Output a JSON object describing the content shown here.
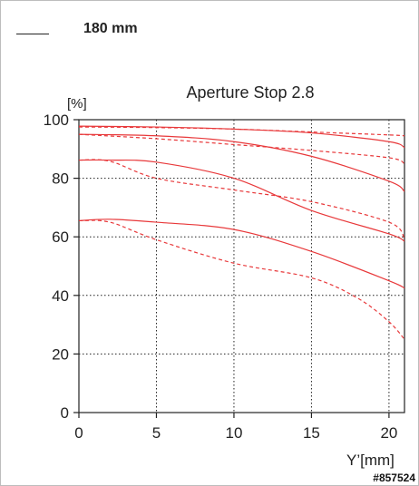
{
  "legend": {
    "label": "180 mm"
  },
  "watermark": "#857524",
  "chart_data": {
    "type": "line",
    "title": "Aperture Stop 2.8",
    "ylabel": "[%]",
    "xlabel": "Y’[mm]",
    "xlim": [
      0,
      21
    ],
    "ylim": [
      0,
      100
    ],
    "xticks": [
      0,
      5,
      10,
      15,
      20
    ],
    "yticks": [
      0,
      20,
      40,
      60,
      80,
      100
    ],
    "grid": true,
    "colors": {
      "series": "#e8383a",
      "axis": "#222222",
      "grid": "#222222"
    },
    "series": [
      {
        "style": "solid",
        "x": [
          0,
          5,
          10,
          15,
          20,
          21
        ],
        "y": [
          97.8,
          97.5,
          96.8,
          95.5,
          92.5,
          90.5
        ]
      },
      {
        "style": "dashed",
        "x": [
          0,
          5,
          10,
          15,
          20,
          21
        ],
        "y": [
          97.5,
          97.3,
          96.8,
          95.8,
          94.8,
          94.5
        ]
      },
      {
        "style": "solid",
        "x": [
          0,
          5,
          10,
          15,
          20,
          21
        ],
        "y": [
          95.0,
          94.5,
          92.5,
          87.5,
          79.0,
          75.5
        ]
      },
      {
        "style": "dashed",
        "x": [
          0,
          5,
          10,
          15,
          20,
          21
        ],
        "y": [
          95.0,
          93.5,
          91.5,
          89.5,
          87.0,
          85.0
        ]
      },
      {
        "style": "solid",
        "x": [
          0,
          2,
          5,
          10,
          15,
          20,
          21
        ],
        "y": [
          86.2,
          86.2,
          85.5,
          80.0,
          69.0,
          61.0,
          58.5
        ]
      },
      {
        "style": "dashed",
        "x": [
          0,
          2,
          5,
          10,
          15,
          20,
          21
        ],
        "y": [
          86.2,
          85.8,
          80.0,
          76.0,
          72.0,
          65.0,
          59.5
        ]
      },
      {
        "style": "solid",
        "x": [
          0,
          2,
          5,
          10,
          15,
          20,
          21
        ],
        "y": [
          65.5,
          66.0,
          65.0,
          62.5,
          55.0,
          45.0,
          42.5
        ]
      },
      {
        "style": "dashed",
        "x": [
          0,
          2,
          5,
          10,
          15,
          18,
          20,
          21
        ],
        "y": [
          65.5,
          65.0,
          59.0,
          51.0,
          46.0,
          39.0,
          31.0,
          25.0
        ]
      }
    ]
  }
}
